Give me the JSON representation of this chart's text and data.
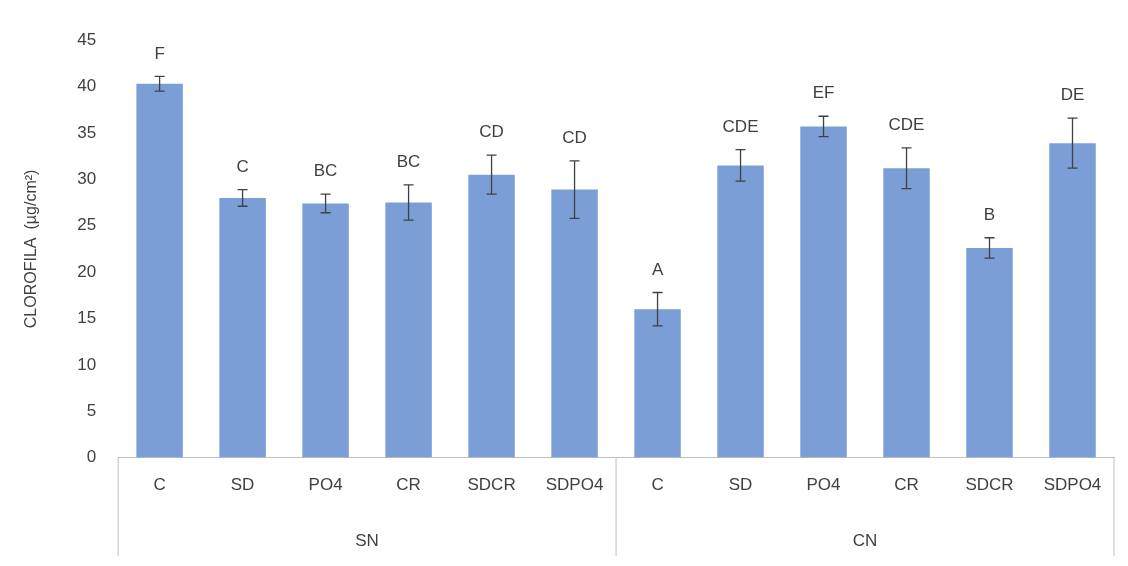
{
  "chart_data": {
    "type": "bar",
    "ylabel": "CLOROFILA  (µg/cm²)",
    "categories": [
      "C",
      "SD",
      "PO4",
      "CR",
      "SDCR",
      "SDPO4",
      "C",
      "SD",
      "PO4",
      "CR",
      "SDCR",
      "SDPO4"
    ],
    "values": [
      40.3,
      28,
      27.4,
      27.5,
      30.5,
      28.9,
      16,
      31.5,
      35.7,
      31.2,
      22.6,
      33.9
    ],
    "errors": [
      0.8,
      0.9,
      1,
      1.9,
      2.1,
      3.1,
      1.8,
      1.7,
      1.1,
      2.2,
      1.1,
      2.7
    ],
    "value_labels": [
      "F",
      "C",
      "BC",
      "BC",
      "CD",
      "CD",
      "A",
      "CDE",
      "EF",
      "CDE",
      "B",
      "DE"
    ],
    "annotations": [
      "SN",
      "CN"
    ],
    "color": "#7b9ed7",
    "ylim": [
      0,
      45
    ],
    "yticks": [
      0,
      5,
      10,
      15,
      20,
      25,
      30,
      35,
      40,
      45
    ],
    "grid": false,
    "legend": false
  }
}
